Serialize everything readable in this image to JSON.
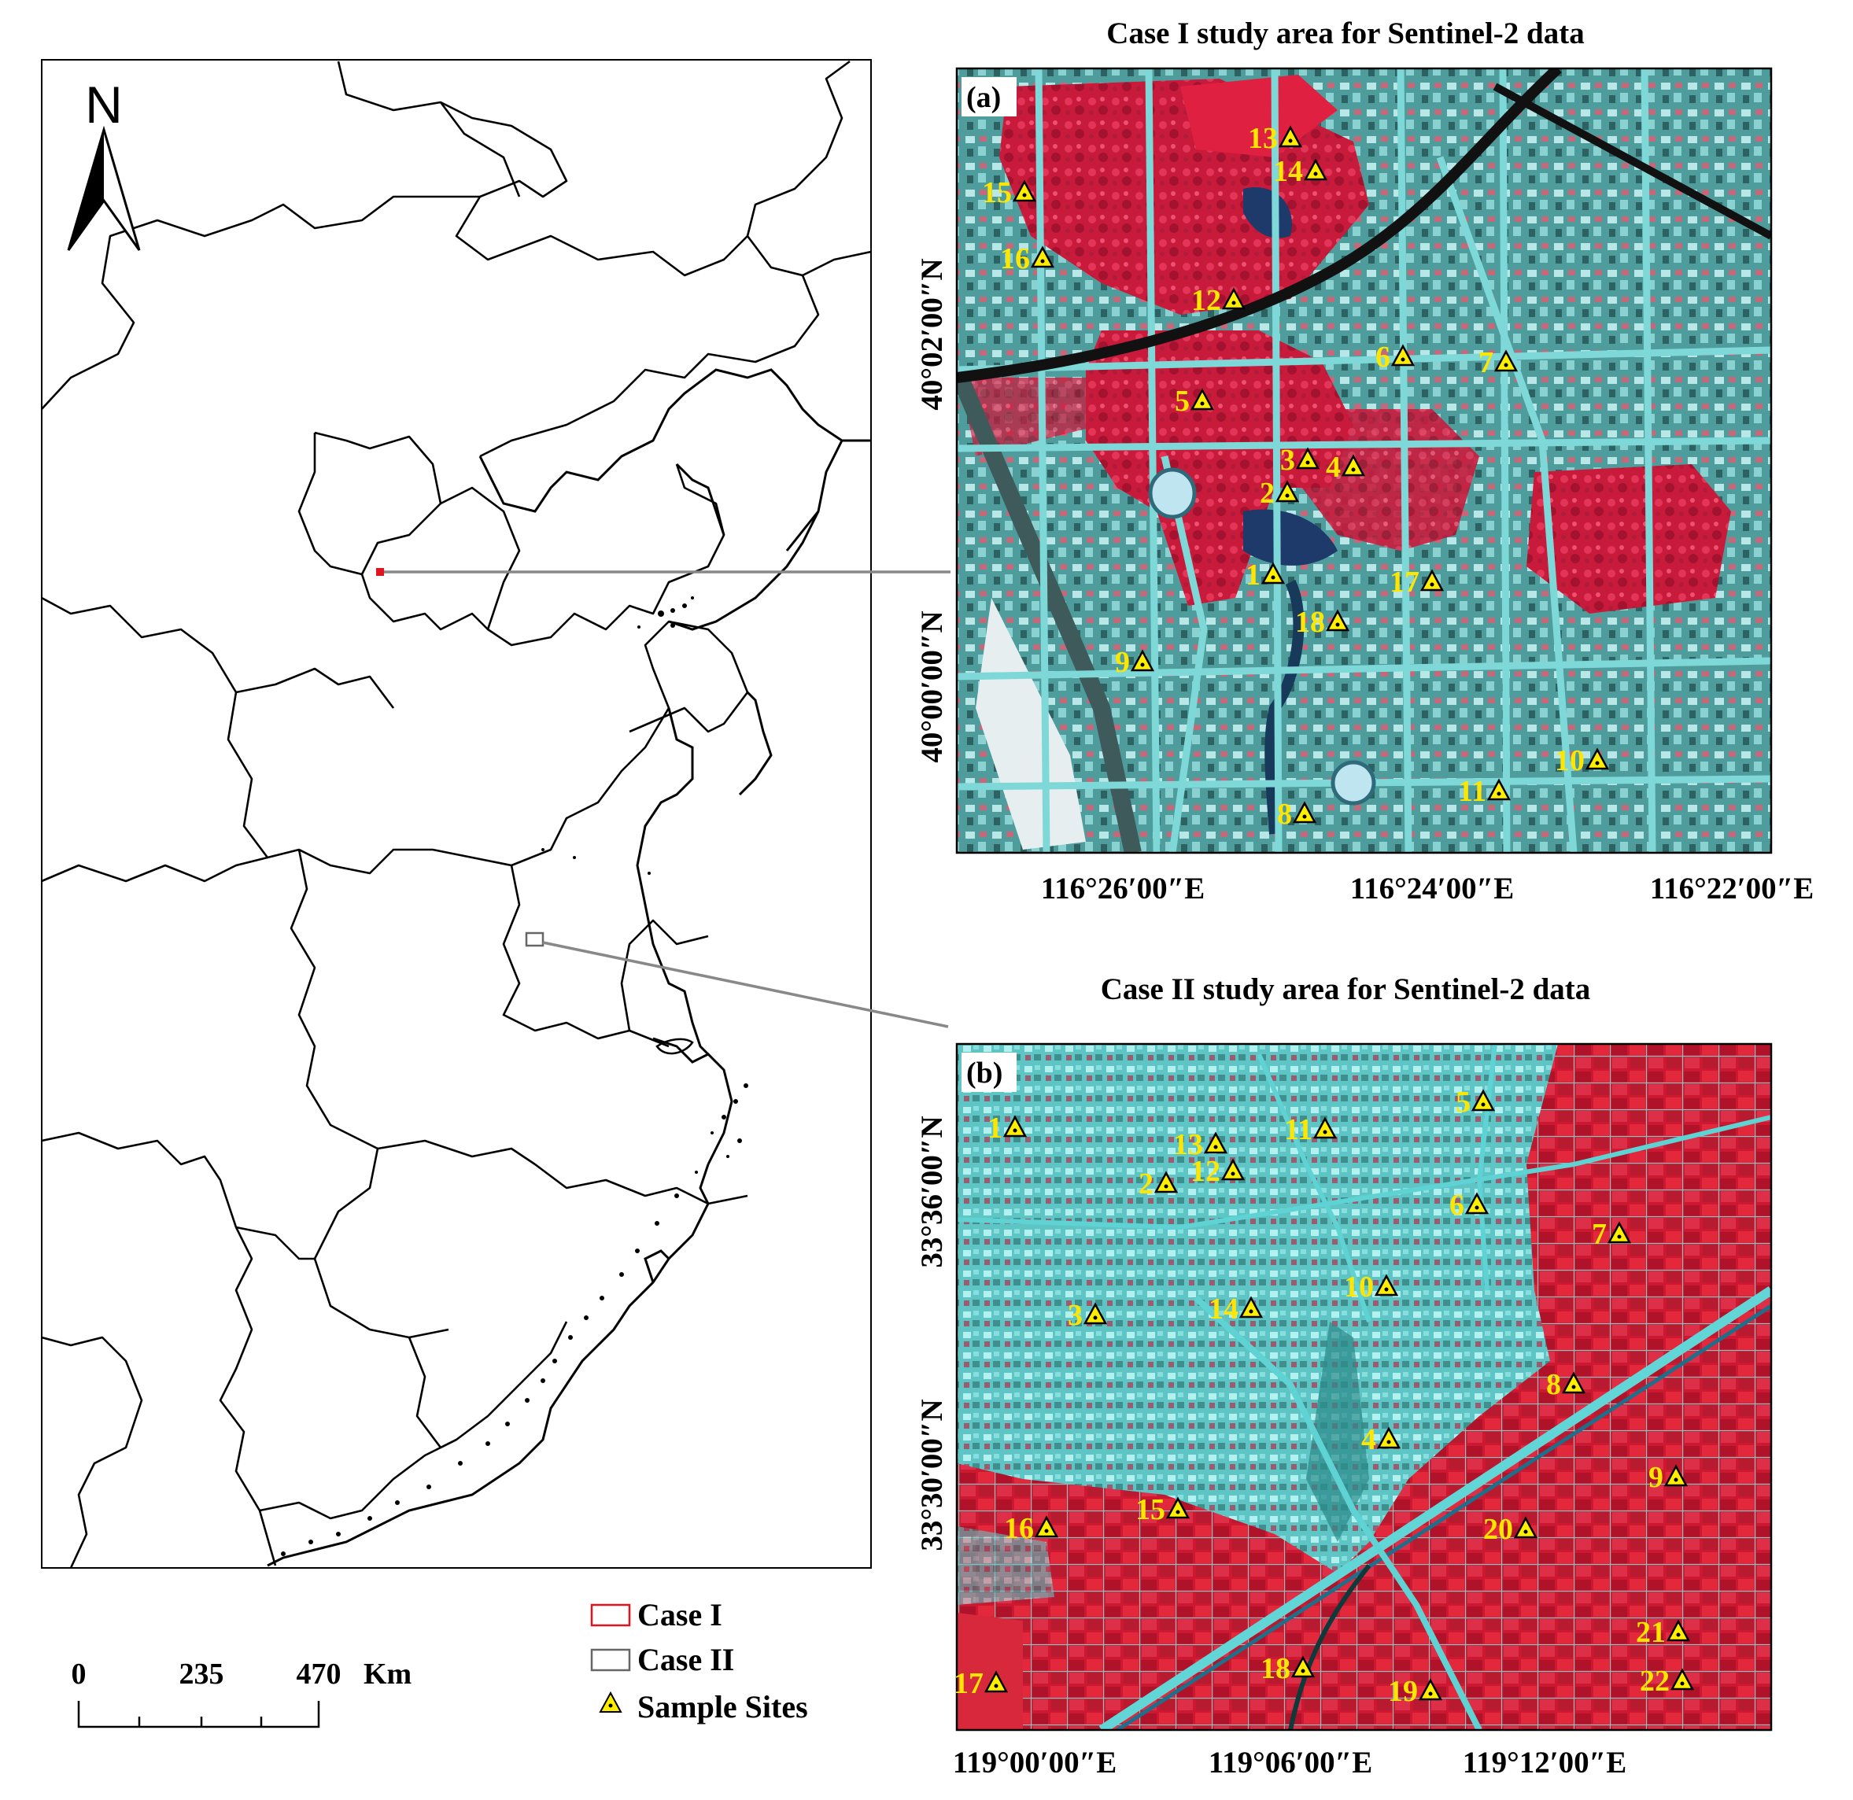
{
  "overview_map": {
    "north_label": "N",
    "scale": {
      "ticks": [
        "0",
        "235",
        "470"
      ],
      "unit": "Km"
    },
    "legend": [
      {
        "key": "case1",
        "label": "Case I",
        "color": "#e0141e"
      },
      {
        "key": "case2",
        "label": "Case II",
        "color": "#666666"
      },
      {
        "key": "sites",
        "label": "Sample Sites",
        "color": "#ffee00"
      }
    ]
  },
  "panel_a": {
    "title": "Case I study area for Sentinel-2 data",
    "tag": "(a)",
    "y_ticks": [
      "40°02′00″N",
      "40°00′00″N"
    ],
    "x_ticks": [
      "116°26′00″E",
      "116°24′00″E",
      "116°22′00″E"
    ],
    "sites": [
      {
        "label": "1"
      },
      {
        "label": "2"
      },
      {
        "label": "3"
      },
      {
        "label": "4"
      },
      {
        "label": "5"
      },
      {
        "label": "6"
      },
      {
        "label": "7"
      },
      {
        "label": "8"
      },
      {
        "label": "9"
      },
      {
        "label": "10"
      },
      {
        "label": "11"
      },
      {
        "label": "12"
      },
      {
        "label": "13"
      },
      {
        "label": "14"
      },
      {
        "label": "15"
      },
      {
        "label": "16"
      },
      {
        "label": "17"
      },
      {
        "label": "18"
      }
    ]
  },
  "panel_b": {
    "title": "Case II study area for Sentinel-2 data",
    "tag": "(b)",
    "y_ticks": [
      "33°36′00″N",
      "33°30′00″N"
    ],
    "x_ticks": [
      "119°00′00″E",
      "119°06′00″E",
      "119°12′00″E"
    ],
    "sites": [
      {
        "label": "1"
      },
      {
        "label": "2"
      },
      {
        "label": "3"
      },
      {
        "label": "4"
      },
      {
        "label": "5"
      },
      {
        "label": "6"
      },
      {
        "label": "7"
      },
      {
        "label": "8"
      },
      {
        "label": "9"
      },
      {
        "label": "10"
      },
      {
        "label": "11"
      },
      {
        "label": "12"
      },
      {
        "label": "13"
      },
      {
        "label": "14"
      },
      {
        "label": "15"
      },
      {
        "label": "16"
      },
      {
        "label": "17"
      },
      {
        "label": "18"
      },
      {
        "label": "19"
      },
      {
        "label": "20"
      },
      {
        "label": "21"
      },
      {
        "label": "22"
      }
    ]
  }
}
